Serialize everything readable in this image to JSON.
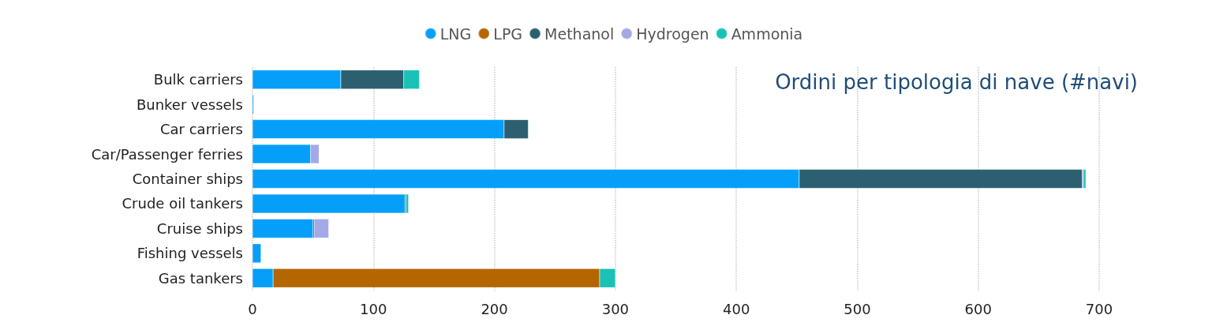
{
  "chart_data": {
    "type": "bar",
    "orientation": "horizontal",
    "stacked": true,
    "title": "Ordini per tipologia di nave (#navi)",
    "categories": [
      "Bulk carriers",
      "Bunker vessels",
      "Car carriers",
      "Car/Passenger ferries",
      "Container ships",
      "Crude oil tankers",
      "Cruise ships",
      "Fishing vessels",
      "Gas tankers"
    ],
    "series": [
      {
        "name": "LNG",
        "color": "#059ff9",
        "values": [
          73,
          1,
          208,
          48,
          452,
          126,
          50,
          7,
          17
        ]
      },
      {
        "name": "LPG",
        "color": "#b46600",
        "values": [
          null,
          null,
          null,
          null,
          null,
          null,
          null,
          null,
          270
        ]
      },
      {
        "name": "Methanol",
        "color": "#2c6070",
        "values": [
          52,
          null,
          20,
          null,
          234,
          1,
          1,
          null,
          null
        ]
      },
      {
        "name": "Hydrogen",
        "color": "#a3a8e6",
        "values": [
          null,
          null,
          null,
          7,
          1,
          null,
          12,
          null,
          null
        ]
      },
      {
        "name": "Ammonia",
        "color": "#19c2b5",
        "values": [
          13,
          null,
          null,
          null,
          2,
          2,
          null,
          null,
          13
        ]
      }
    ],
    "xlim": [
      0,
      700
    ],
    "xticks": [
      0,
      100,
      200,
      300,
      400,
      500,
      600,
      700
    ],
    "grid": "x",
    "legend": "top"
  }
}
